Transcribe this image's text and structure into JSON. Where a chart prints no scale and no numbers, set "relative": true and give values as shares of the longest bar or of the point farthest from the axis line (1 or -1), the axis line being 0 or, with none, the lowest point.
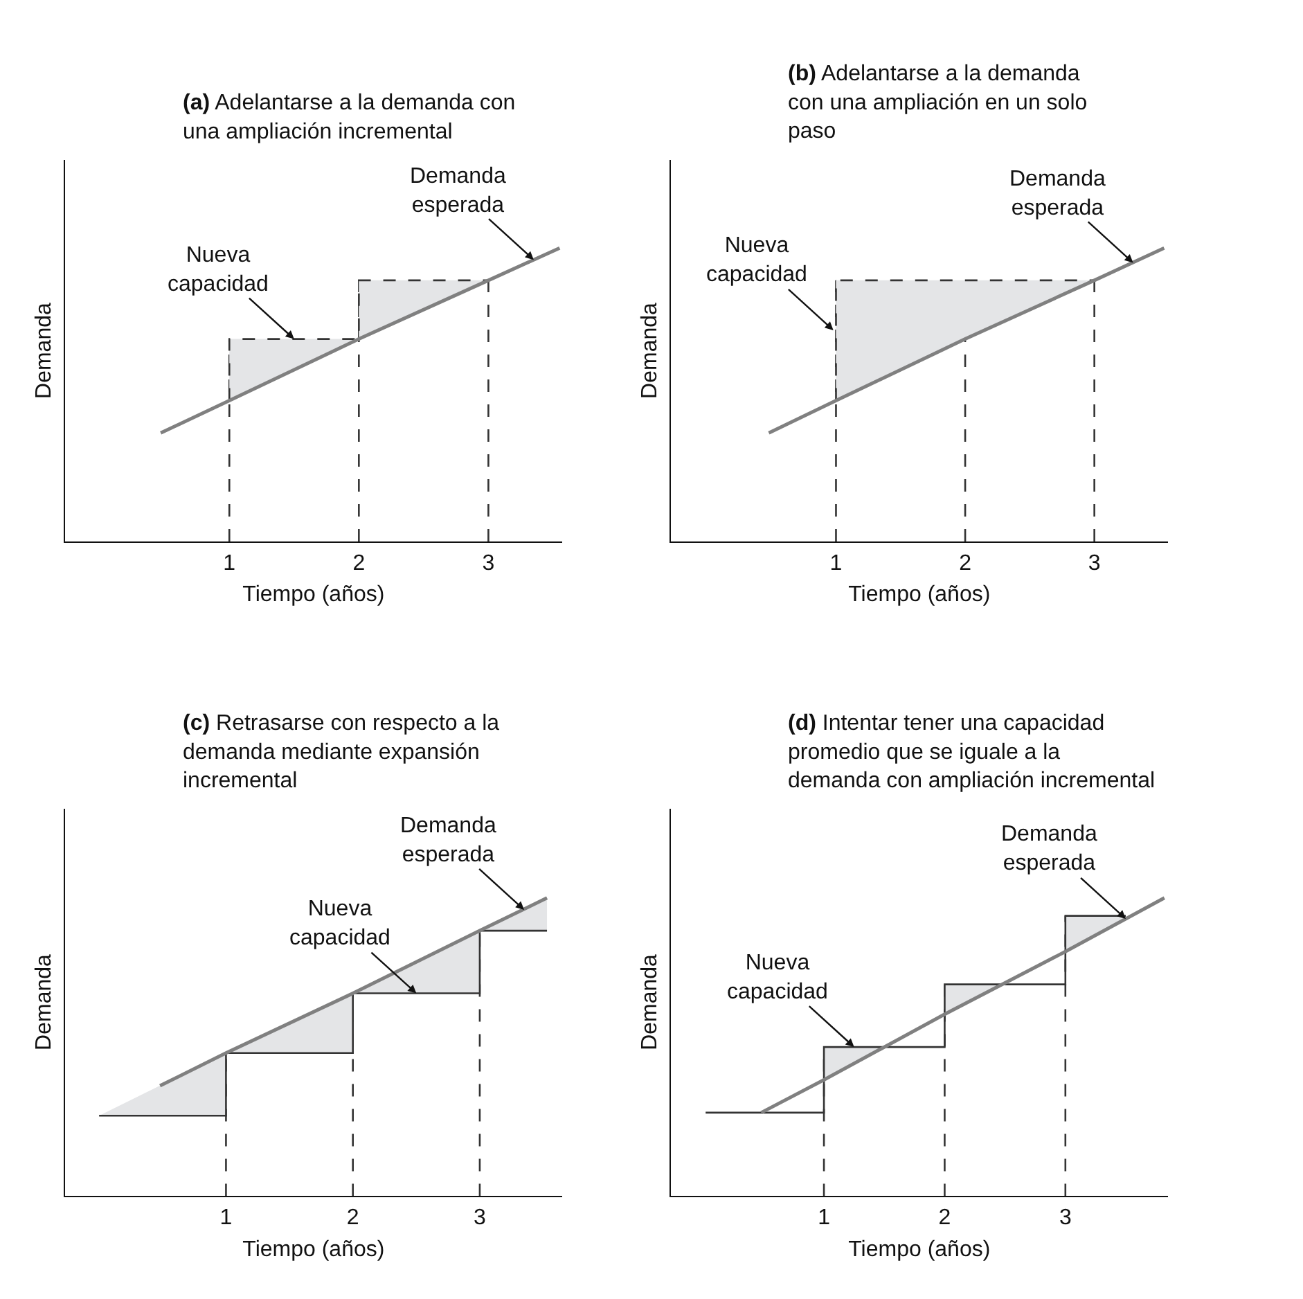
{
  "chart_data": [
    {
      "type": "line",
      "title": "(a) Adelantarse a la demanda con una ampliación incremental",
      "xlabel": "Tiempo (años)",
      "ylabel": "Demanda",
      "relative": true,
      "xlim": [
        -0.27,
        3.57
      ],
      "xticks": [
        1,
        2,
        3
      ],
      "ref_lines": [
        {
          "axis": "x",
          "value": 1,
          "color": "#333333",
          "line_style": "dashed"
        },
        {
          "axis": "x",
          "value": 2,
          "color": "#333333",
          "line_style": "dashed"
        },
        {
          "axis": "x",
          "value": 3,
          "color": "#333333",
          "line_style": "dashed"
        }
      ],
      "annotations": [
        {
          "text": "Nueva capacidad",
          "x": 1.5,
          "y": 0.69
        },
        {
          "text": "Demanda esperada",
          "x": 3.35,
          "y": 0.96
        }
      ],
      "series": [
        {
          "type": "line",
          "color": "#333333",
          "line_style": "dashed",
          "x": [
            1,
            1,
            2,
            2,
            3
          ],
          "values": [
            0.48,
            0.69,
            0.69,
            0.89,
            0.89
          ],
          "lower": [
            0.48,
            0.48,
            0.69,
            0.69,
            0.89
          ],
          "upper": [
            0.48,
            0.69,
            0.69,
            0.89,
            0.89
          ]
        },
        {
          "type": "line",
          "color": "#808080",
          "x": [
            0.47,
            1,
            2,
            3,
            3.55
          ],
          "values": [
            0.37,
            0.48,
            0.69,
            0.89,
            1.0
          ]
        }
      ]
    },
    {
      "type": "line",
      "title": "(b) Adelantarse a la demanda con una ampliación en un solo paso",
      "xlabel": "Tiempo (años)",
      "ylabel": "Demanda",
      "relative": true,
      "xlim": [
        -0.28,
        3.57
      ],
      "xticks": [
        1,
        2,
        3
      ],
      "ref_lines": [
        {
          "axis": "x",
          "value": 1,
          "color": "#333333",
          "line_style": "dashed"
        },
        {
          "axis": "x",
          "value": 2,
          "color": "#333333",
          "line_style": "dashed"
        },
        {
          "axis": "x",
          "value": 3,
          "color": "#333333",
          "line_style": "dashed"
        }
      ],
      "annotations": [
        {
          "text": "Nueva capacidad",
          "x": 0.98,
          "y": 0.72
        },
        {
          "text": "Demanda esperada",
          "x": 3.3,
          "y": 0.95
        }
      ],
      "series": [
        {
          "type": "line",
          "color": "#333333",
          "line_style": "dashed",
          "x": [
            1,
            1,
            3
          ],
          "values": [
            0.48,
            0.89,
            0.89
          ],
          "lower": [
            0.48,
            0.48,
            0.89
          ],
          "upper": [
            0.48,
            0.89,
            0.89
          ]
        },
        {
          "type": "line",
          "color": "#808080",
          "x": [
            0.48,
            1,
            2,
            3,
            3.54
          ],
          "values": [
            0.37,
            0.48,
            0.69,
            0.89,
            1.0
          ]
        }
      ]
    },
    {
      "type": "line",
      "title": "(c) Retrasarse con respecto a la demanda mediante expansión incremental",
      "xlabel": "Tiempo (años)",
      "ylabel": "Demanda",
      "relative": true,
      "xlim": [
        -0.27,
        3.65
      ],
      "xticks": [
        1,
        2,
        3
      ],
      "ref_lines": [
        {
          "axis": "x",
          "value": 1,
          "color": "#333333",
          "line_style": "dashed"
        },
        {
          "axis": "x",
          "value": 2,
          "color": "#333333",
          "line_style": "dashed"
        },
        {
          "axis": "x",
          "value": 3,
          "color": "#333333",
          "line_style": "dashed"
        }
      ],
      "annotations": [
        {
          "text": "Nueva capacidad",
          "x": 2.5,
          "y": 0.68
        },
        {
          "text": "Demanda esperada",
          "x": 3.35,
          "y": 0.96
        }
      ],
      "series": [
        {
          "type": "line",
          "color": "#333333",
          "line_style": "solid",
          "x": [
            0,
            1,
            1,
            2,
            2,
            3,
            3,
            3.53
          ],
          "values": [
            0.27,
            0.27,
            0.48,
            0.48,
            0.68,
            0.68,
            0.89,
            0.89
          ],
          "lower": [
            0.27,
            0.27,
            0.48,
            0.48,
            0.68,
            0.68,
            0.89,
            0.89
          ],
          "upper": [
            0.27,
            0.48,
            0.48,
            0.68,
            0.68,
            0.89,
            0.89,
            1.0
          ]
        },
        {
          "type": "line",
          "color": "#808080",
          "x": [
            0.48,
            1,
            2,
            3,
            3.53
          ],
          "values": [
            0.37,
            0.48,
            0.68,
            0.89,
            1.0
          ]
        }
      ]
    },
    {
      "type": "line",
      "title": "(d) Intentar tener una capacidad promedio que se iguale a la demanda con ampliación incremental",
      "xlabel": "Tiempo (años)",
      "ylabel": "Demanda",
      "relative": true,
      "xlim": [
        -0.27,
        3.85
      ],
      "xticks": [
        1,
        2,
        3
      ],
      "ref_lines": [
        {
          "axis": "x",
          "value": 1,
          "color": "#333333",
          "line_style": "dashed"
        },
        {
          "axis": "x",
          "value": 2,
          "color": "#333333",
          "line_style": "dashed"
        },
        {
          "axis": "x",
          "value": 3,
          "color": "#333333",
          "line_style": "dashed"
        }
      ],
      "annotations": [
        {
          "text": "Nueva capacidad",
          "x": 1.25,
          "y": 0.5
        },
        {
          "text": "Demanda esperada",
          "x": 3.5,
          "y": 0.93
        }
      ],
      "series": [
        {
          "type": "line",
          "color": "#333333",
          "line_style": "solid",
          "x": [
            0.02,
            1,
            1,
            1.5,
            2,
            2,
            2.45,
            3,
            3,
            3.5
          ],
          "values": [
            0.28,
            0.28,
            0.5,
            0.5,
            0.5,
            0.71,
            0.71,
            0.71,
            0.94,
            0.94
          ],
          "lower": [
            null,
            null,
            0.39,
            0.5,
            null,
            0.61,
            0.71,
            null,
            0.82,
            0.93
          ],
          "upper": [
            null,
            null,
            0.5,
            0.5,
            null,
            0.71,
            0.71,
            null,
            0.94,
            0.94
          ]
        },
        {
          "type": "line",
          "color": "#808080",
          "x": [
            0.48,
            1,
            2,
            3,
            3.82
          ],
          "values": [
            0.28,
            0.39,
            0.61,
            0.82,
            1.0
          ]
        }
      ]
    }
  ]
}
